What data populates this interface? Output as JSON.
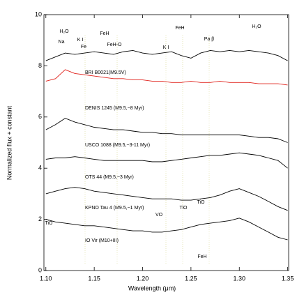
{
  "chart_data": {
    "type": "line",
    "x_label": "Wavelength (μm)",
    "y_label": "Normalized flux + constant",
    "xlim": [
      1.098,
      1.351
    ],
    "ylim": [
      0,
      10
    ],
    "xticks": [
      {
        "value": 1.1,
        "label": "1.10"
      },
      1.15,
      {
        "value": 1.2,
        "label": "1.20"
      },
      1.25,
      {
        "value": 1.3,
        "label": "1.30"
      },
      1.35
    ],
    "yticks": [
      0,
      2,
      4,
      6,
      8,
      10
    ],
    "x": [
      1.1,
      1.11,
      1.12,
      1.13,
      1.14,
      1.15,
      1.16,
      1.17,
      1.18,
      1.19,
      1.2,
      1.21,
      1.22,
      1.23,
      1.24,
      1.25,
      1.26,
      1.27,
      1.28,
      1.29,
      1.3,
      1.31,
      1.32,
      1.33,
      1.34,
      1.35
    ],
    "series": [
      {
        "name": "BRI B0021(M9.5V)",
        "color": "#000000",
        "values": [
          8.2,
          8.35,
          8.5,
          8.45,
          8.5,
          8.55,
          8.5,
          8.45,
          8.55,
          8.6,
          8.5,
          8.45,
          8.5,
          8.55,
          8.4,
          8.3,
          8.5,
          8.6,
          8.55,
          8.6,
          8.55,
          8.6,
          8.55,
          8.5,
          8.4,
          8.2
        ]
      },
      {
        "name": "DENIS 1245 (M9.5,~8 Myr)",
        "color": "#e0201a",
        "values": [
          7.4,
          7.5,
          7.85,
          7.7,
          7.65,
          7.6,
          7.55,
          7.5,
          7.5,
          7.45,
          7.45,
          7.4,
          7.4,
          7.35,
          7.35,
          7.4,
          7.35,
          7.35,
          7.4,
          7.35,
          7.35,
          7.35,
          7.3,
          7.3,
          7.3,
          7.25
        ]
      },
      {
        "name": "USCO 1088 (M9.5,~3-11 Myr)",
        "color": "#000000",
        "values": [
          5.5,
          5.7,
          5.95,
          5.8,
          5.7,
          5.6,
          5.55,
          5.5,
          5.5,
          5.45,
          5.4,
          5.4,
          5.35,
          5.35,
          5.3,
          5.3,
          5.3,
          5.3,
          5.3,
          5.3,
          5.3,
          5.25,
          5.2,
          5.2,
          5.15,
          5.0
        ]
      },
      {
        "name": "OTS 44 (M9.5,~3 Myr)",
        "color": "#000000",
        "values": [
          4.35,
          4.4,
          4.4,
          4.45,
          4.4,
          4.35,
          4.3,
          4.3,
          4.3,
          4.3,
          4.3,
          4.25,
          4.25,
          4.3,
          4.35,
          4.4,
          4.45,
          4.5,
          4.5,
          4.55,
          4.6,
          4.55,
          4.5,
          4.4,
          4.3,
          4.0
        ]
      },
      {
        "name": "KPNO Tau 4 (M9.5,~1 Myr)",
        "color": "#000000",
        "values": [
          3.0,
          3.1,
          3.2,
          3.25,
          3.2,
          3.1,
          3.05,
          3.0,
          2.95,
          2.9,
          2.85,
          2.8,
          2.8,
          2.8,
          2.75,
          2.75,
          2.8,
          2.85,
          2.95,
          3.1,
          3.2,
          3.05,
          2.9,
          2.7,
          2.5,
          2.35
        ]
      },
      {
        "name": "IO Vir (M10+III)",
        "color": "#000000",
        "values": [
          2.0,
          1.9,
          1.85,
          1.8,
          1.75,
          1.75,
          1.7,
          1.65,
          1.6,
          1.55,
          1.55,
          1.5,
          1.5,
          1.55,
          1.6,
          1.7,
          1.8,
          1.85,
          1.9,
          1.95,
          2.05,
          1.9,
          1.7,
          1.5,
          1.3,
          1.2
        ]
      }
    ],
    "annotations": [
      "H₂O",
      "Na",
      "K I",
      "Fe",
      "FeH",
      "FeH-O",
      "K I",
      "FeH",
      "Pa β",
      "H₂O",
      "TiO",
      "TiO",
      "VO",
      "TiO",
      "FeH"
    ],
    "grid": false
  }
}
